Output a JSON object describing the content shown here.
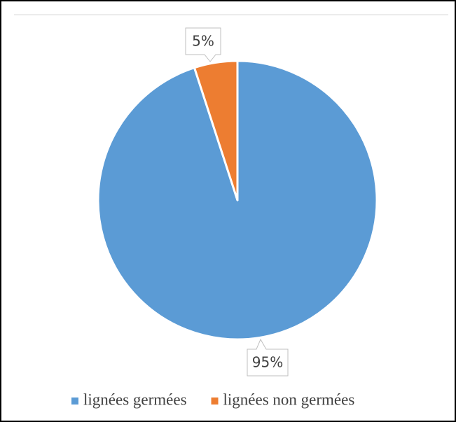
{
  "chart_data": {
    "type": "pie",
    "categories": [
      "lignées germées",
      "lignées non germées"
    ],
    "values": [
      95,
      5
    ],
    "value_labels": [
      "95%",
      "5%"
    ],
    "colors": [
      "#5b9bd5",
      "#ed7d31"
    ],
    "legend": "bottom"
  }
}
